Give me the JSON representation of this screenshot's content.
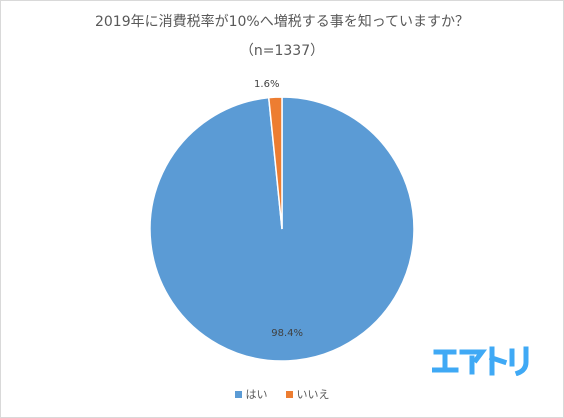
{
  "chart_data": {
    "type": "pie",
    "title": "2019年に消費税率が10%へ増税する事を知っていますか？",
    "subtitle": "（n=1337）",
    "categories": [
      "はい",
      "いいえ"
    ],
    "values": [
      98.4,
      1.6
    ],
    "data_labels": [
      "98.4%",
      "1.6%"
    ],
    "colors": [
      "#5b9bd5",
      "#ed7d31"
    ],
    "legend_position": "bottom"
  },
  "logo_text": "エアトリ",
  "logo_color": "#3fa9f5"
}
